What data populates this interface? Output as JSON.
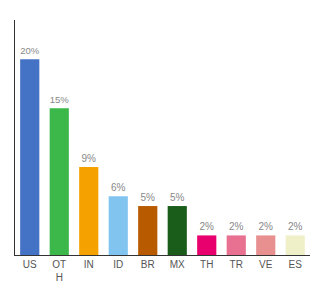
{
  "chart_data": {
    "type": "bar",
    "categories": [
      "US",
      "OT\nH",
      "IN",
      "ID",
      "BR",
      "MX",
      "TH",
      "TR",
      "VE",
      "ES"
    ],
    "values": [
      20,
      15,
      9,
      6,
      5,
      5,
      2,
      2,
      2,
      2
    ],
    "value_labels": [
      "20%",
      "15%",
      "9%",
      "6%",
      "5%",
      "5%",
      "2%",
      "2%",
      "2%",
      "2%"
    ],
    "data_labels": true,
    "colors": [
      "#4472c4",
      "#3cb84a",
      "#f5a200",
      "#82c4f0",
      "#b85a00",
      "#1a5c1a",
      "#e8006e",
      "#e87090",
      "#e89090",
      "#f0f0c8"
    ],
    "ylim": [
      0,
      24
    ],
    "grid": false,
    "tick_labels": "x"
  }
}
